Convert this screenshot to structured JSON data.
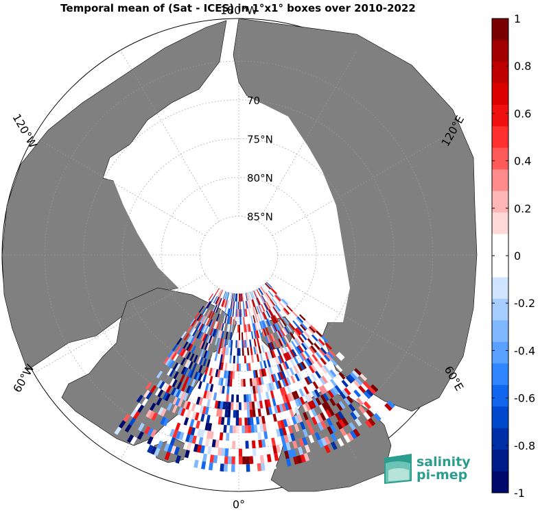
{
  "chart_data": {
    "type": "heatmap",
    "title": "Temporal mean of (Sat - ICES) in 1°x1° boxes over 2010-2022",
    "projection": "north polar stereographic",
    "meridian_labels": [
      {
        "lon": 180,
        "text": "180°W"
      },
      {
        "lon": -120,
        "text": "120°W"
      },
      {
        "lon": 120,
        "text": "120°E"
      },
      {
        "lon": -60,
        "text": "60°W"
      },
      {
        "lon": 60,
        "text": "60°E"
      },
      {
        "lon": 0,
        "text": "0°"
      }
    ],
    "parallel_labels": [
      {
        "lat": 70,
        "text": "70"
      },
      {
        "lat": 75,
        "text": "75°N"
      },
      {
        "lat": 80,
        "text": "80°N"
      },
      {
        "lat": 85,
        "text": "85°N"
      }
    ],
    "colorbar": {
      "min": -1,
      "max": 1,
      "ticks": [
        1,
        0.8,
        0.6,
        0.4,
        0.2,
        0,
        -0.2,
        -0.4,
        -0.6,
        -0.8,
        -1
      ],
      "tick_labels": [
        "1",
        "0.8",
        "0.6",
        "0.4",
        "0.2",
        "0",
        "-0.2",
        "-0.4",
        "-0.6",
        "-0.8",
        "-1"
      ],
      "colors": [
        "#7a0000",
        "#a00000",
        "#c00000",
        "#dc0000",
        "#f01010",
        "#ff3030",
        "#ff5a5a",
        "#ff8c8c",
        "#ffb6b6",
        "#ffd8d8",
        "#ffffff",
        "#ffffff",
        "#cfe4ff",
        "#a6cdff",
        "#80b8ff",
        "#5aa0ff",
        "#2f86ff",
        "#1066ee",
        "#0048cc",
        "#0030a8",
        "#001c88",
        "#000a6a"
      ]
    },
    "data_region": {
      "lon_range": [
        -35,
        45
      ],
      "lat_range": [
        62,
        84
      ]
    },
    "observations_sample": [
      {
        "lon": -30,
        "lat": 72,
        "v": -0.8
      },
      {
        "lon": -25,
        "lat": 72,
        "v": 0.9
      },
      {
        "lon": -20,
        "lat": 71,
        "v": -0.6
      },
      {
        "lon": -15,
        "lat": 70,
        "v": 0.3
      },
      {
        "lon": -10,
        "lat": 71,
        "v": -0.4
      },
      {
        "lon": -5,
        "lat": 70,
        "v": -0.9
      },
      {
        "lon": 0,
        "lat": 68,
        "v": 0.5
      },
      {
        "lon": 5,
        "lat": 67,
        "v": -0.3
      },
      {
        "lon": 10,
        "lat": 70,
        "v": 0.8
      },
      {
        "lon": 15,
        "lat": 75,
        "v": -0.7
      },
      {
        "lon": 20,
        "lat": 77,
        "v": 0.9
      },
      {
        "lon": 25,
        "lat": 79,
        "v": -0.5
      },
      {
        "lon": 30,
        "lat": 80,
        "v": 0.6
      }
    ]
  },
  "logo": {
    "line1": "salinity",
    "line2": "pi-mep",
    "color": "#2a9d8f"
  },
  "colors": {
    "land": "#808080",
    "ice": "#ffffff",
    "grid": "#9a9a9a"
  }
}
